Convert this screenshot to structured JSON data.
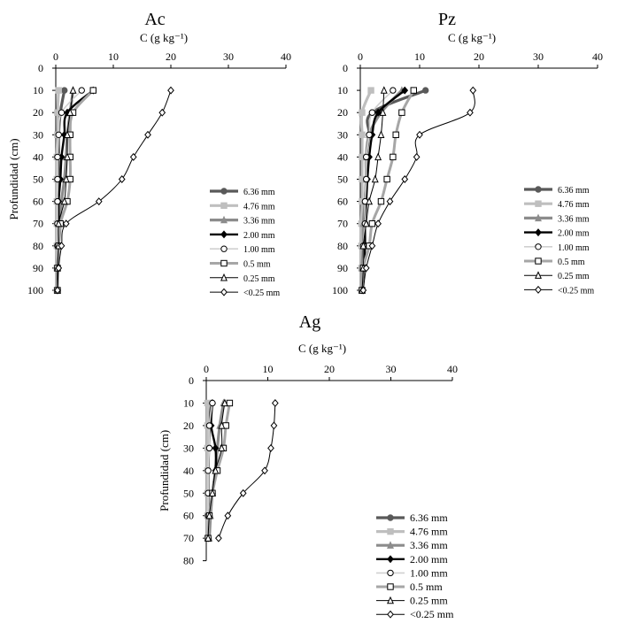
{
  "styles": {
    "6.36 mm": {
      "color": "#595959",
      "width": 3.2,
      "marker": "circle",
      "fill": "#595959"
    },
    "4.76 mm": {
      "color": "#bfbfbf",
      "width": 3.2,
      "marker": "square",
      "fill": "#bfbfbf"
    },
    "3.36 mm": {
      "color": "#8c8c8c",
      "width": 3.2,
      "marker": "triangle",
      "fill": "#8c8c8c"
    },
    "2.00 mm": {
      "color": "#000000",
      "width": 2.4,
      "marker": "diamond",
      "fill": "#000000"
    },
    "1.00 mm": {
      "color": "#d0d0d0",
      "width": 1.6,
      "marker": "circle",
      "fill": "#ffffff"
    },
    "0.5 mm": {
      "color": "#a6a6a6",
      "width": 3.0,
      "marker": "square",
      "fill": "#ffffff"
    },
    "0.25 mm": {
      "color": "#000000",
      "width": 1.0,
      "marker": "triangle",
      "fill": "#ffffff"
    },
    "<0.25 mm": {
      "color": "#000000",
      "width": 1.0,
      "marker": "diamond",
      "fill": "#ffffff"
    }
  },
  "chart_data": [
    {
      "type": "line",
      "title": "Ac",
      "xlabel": "C (g kg⁻¹)",
      "ylabel": "Profundidad (cm)",
      "xlim": [
        0,
        40
      ],
      "ylim": [
        0,
        100
      ],
      "xticks": [
        0,
        10,
        20,
        30,
        40
      ],
      "yticks": [
        0,
        10,
        20,
        30,
        40,
        50,
        60,
        70,
        80,
        90,
        100
      ],
      "depths": [
        10,
        20,
        30,
        40,
        50,
        60,
        70,
        80,
        90,
        100
      ],
      "series": [
        {
          "name": "6.36 mm",
          "values": [
            1.5,
            0.8,
            0.5,
            0.5,
            0.4,
            0.4,
            0.3,
            0.3,
            0.3,
            0.3
          ]
        },
        {
          "name": "4.76 mm",
          "values": [
            0.5,
            0.3,
            0.3,
            0.2,
            0.2,
            0.2,
            0.2,
            0.2,
            0.2,
            0.2
          ]
        },
        {
          "name": "3.36 mm",
          "values": [
            3.0,
            2.5,
            2.0,
            1.8,
            1.5,
            1.0,
            0.8,
            0.5,
            0.3,
            0.3
          ]
        },
        {
          "name": "2.00 mm",
          "values": [
            6.5,
            2.0,
            1.5,
            1.0,
            0.8,
            0.5,
            0.5,
            0.4,
            0.3,
            0.3
          ]
        },
        {
          "name": "1.00 mm",
          "values": [
            4.5,
            1.0,
            0.5,
            0.3,
            0.3,
            0.3,
            0.3,
            0.3,
            0.3,
            0.3
          ]
        },
        {
          "name": "0.5 mm",
          "values": [
            6.5,
            3.0,
            2.5,
            2.5,
            2.5,
            2.0,
            0.8,
            0.5,
            0.3,
            0.3
          ]
        },
        {
          "name": "0.25 mm",
          "values": [
            3.0,
            2.5,
            2.0,
            2.0,
            1.8,
            1.5,
            0.5,
            0.5,
            0.3,
            0.3
          ]
        },
        {
          "name": "<0.25 mm",
          "values": [
            20.0,
            18.5,
            16.0,
            13.5,
            11.5,
            7.5,
            1.8,
            1.0,
            0.5,
            0.3
          ]
        }
      ]
    },
    {
      "type": "line",
      "title": "Pz",
      "xlabel": "C (g kg⁻¹)",
      "ylabel": "",
      "xlim": [
        0,
        40
      ],
      "ylim": [
        0,
        100
      ],
      "xticks": [
        0,
        10,
        20,
        30,
        40
      ],
      "yticks": [
        0,
        10,
        20,
        30,
        40,
        50,
        60,
        70,
        80,
        90,
        100
      ],
      "depths": [
        10,
        20,
        30,
        40,
        50,
        60,
        70,
        80,
        90,
        100
      ],
      "series": [
        {
          "name": "6.36 mm",
          "values": [
            11.0,
            2.0,
            1.5,
            1.0,
            1.0,
            0.8,
            0.6,
            0.5,
            0.4,
            0.3
          ]
        },
        {
          "name": "4.76 mm",
          "values": [
            1.8,
            0.3,
            0.3,
            0.3,
            0.3,
            0.3,
            0.2,
            0.2,
            0.2,
            0.2
          ]
        },
        {
          "name": "3.36 mm",
          "values": [
            7.0,
            3.5,
            1.5,
            1.0,
            1.0,
            0.8,
            0.5,
            0.5,
            0.3,
            0.3
          ]
        },
        {
          "name": "2.00 mm",
          "values": [
            7.5,
            3.0,
            2.0,
            1.5,
            1.2,
            1.0,
            0.8,
            0.8,
            0.6,
            0.3
          ]
        },
        {
          "name": "1.00 mm",
          "values": [
            5.5,
            2.0,
            1.5,
            1.0,
            1.0,
            0.8,
            0.8,
            0.5,
            0.5,
            0.3
          ]
        },
        {
          "name": "0.5 mm",
          "values": [
            9.0,
            7.0,
            6.0,
            5.5,
            4.5,
            3.5,
            2.0,
            1.5,
            0.5,
            0.3
          ]
        },
        {
          "name": "0.25 mm",
          "values": [
            4.0,
            3.8,
            3.5,
            3.0,
            2.5,
            1.5,
            1.0,
            0.5,
            0.5,
            0.3
          ]
        },
        {
          "name": "<0.25 mm",
          "values": [
            19.0,
            18.5,
            10.0,
            9.5,
            7.5,
            5.0,
            3.0,
            2.0,
            1.0,
            0.5
          ]
        }
      ]
    },
    {
      "type": "line",
      "title": "Ag",
      "xlabel": "C (g kg⁻¹)",
      "ylabel": "Profundidad (cm)",
      "xlim": [
        0,
        40
      ],
      "ylim": [
        0,
        80
      ],
      "xticks": [
        0,
        10,
        20,
        30,
        40
      ],
      "yticks": [
        0,
        10,
        20,
        30,
        40,
        50,
        60,
        70,
        80
      ],
      "depths": [
        10,
        20,
        30,
        40,
        50,
        60,
        70
      ],
      "series": [
        {
          "name": "6.36 mm",
          "values": [
            0.8,
            0.5,
            0.4,
            0.3,
            0.3,
            0.3,
            0.3
          ]
        },
        {
          "name": "4.76 mm",
          "values": [
            0.2,
            0.2,
            0.2,
            0.2,
            0.2,
            0.2,
            0.2
          ]
        },
        {
          "name": "3.36 mm",
          "values": [
            2.8,
            2.2,
            1.8,
            1.5,
            1.0,
            0.7,
            0.5
          ]
        },
        {
          "name": "2.00 mm",
          "values": [
            1.0,
            0.8,
            1.5,
            1.5,
            1.0,
            0.5,
            0.3
          ]
        },
        {
          "name": "1.00 mm",
          "values": [
            1.0,
            0.5,
            0.5,
            0.3,
            0.3,
            0.3,
            0.3
          ]
        },
        {
          "name": "0.5 mm",
          "values": [
            3.8,
            3.2,
            2.8,
            1.8,
            1.0,
            0.5,
            0.3
          ]
        },
        {
          "name": "0.25 mm",
          "values": [
            3.0,
            2.5,
            2.5,
            1.5,
            1.0,
            0.5,
            0.3
          ]
        },
        {
          "name": "<0.25 mm",
          "values": [
            11.2,
            11.0,
            10.5,
            9.5,
            6.0,
            3.5,
            2.0
          ]
        }
      ]
    }
  ],
  "legend_labels": [
    "6.36 mm",
    "4.76 mm",
    "3.36 mm",
    "2.00 mm",
    "1.00 mm",
    "0.5 mm",
    "0.25 mm",
    "<0.25 mm"
  ]
}
